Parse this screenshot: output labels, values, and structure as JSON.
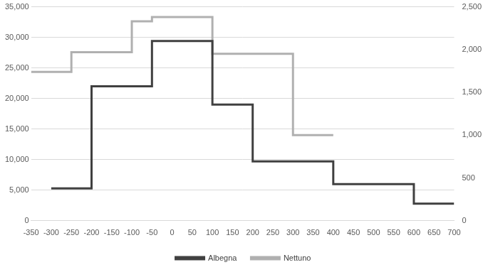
{
  "chart_data": {
    "type": "line",
    "line_style": "stepped",
    "series": [
      {
        "name": "Albegna",
        "color": "#404040",
        "axis": "y",
        "x": [
          -300,
          -200,
          -50,
          100,
          200,
          400,
          600,
          700
        ],
        "values": [
          5300,
          22000,
          29400,
          19000,
          9700,
          6000,
          2800,
          2800
        ]
      },
      {
        "name": "Nettuno",
        "color": "#b0b0b0",
        "axis": "y2",
        "x": [
          -350,
          -250,
          -100,
          -50,
          100,
          300,
          400
        ],
        "values": [
          1740,
          1970,
          2330,
          2380,
          1950,
          1000,
          1000
        ]
      }
    ],
    "xlim": [
      -350,
      700
    ],
    "xticks": [
      -350,
      -300,
      -250,
      -200,
      -150,
      -100,
      -50,
      0,
      50,
      100,
      150,
      200,
      250,
      300,
      350,
      400,
      450,
      500,
      550,
      600,
      650,
      700
    ],
    "ylim": [
      0,
      35000
    ],
    "yticks": [
      0,
      5000,
      10000,
      15000,
      20000,
      25000,
      30000,
      35000
    ],
    "y2lim": [
      0,
      2500
    ],
    "y2ticks": [
      0,
      500,
      1000,
      1500,
      2000,
      2500
    ],
    "grid": true,
    "legend": "bottom"
  }
}
